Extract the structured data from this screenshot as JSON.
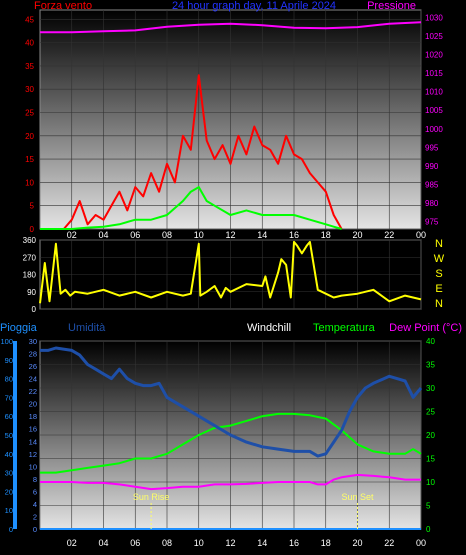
{
  "chart_data": [
    {
      "type": "line",
      "panel": "wind-pressure",
      "title": "24 hour graph day, 11 Aprile 2024",
      "left_axis_label": "Forza vento",
      "right_axis_label": "Pressione",
      "x_ticks": [
        "02",
        "04",
        "06",
        "08",
        "10",
        "12",
        "14",
        "16",
        "18",
        "20",
        "22",
        "00"
      ],
      "left_ticks": [
        "0",
        "5",
        "10",
        "15",
        "20",
        "25",
        "30",
        "35",
        "40",
        "45"
      ],
      "right_ticks": [
        "975",
        "980",
        "985",
        "990",
        "995",
        "1000",
        "1005",
        "1010",
        "1015",
        "1020",
        "1025",
        "1030"
      ],
      "ylim_left": [
        0,
        47
      ],
      "ylim_right": [
        973,
        1032
      ],
      "series": [
        {
          "color": "#ff00ff",
          "hours": [
            0,
            2,
            4,
            6,
            8,
            10,
            12,
            14,
            16,
            18,
            20,
            22,
            24
          ],
          "values": [
            1026,
            1026,
            1026.3,
            1026.5,
            1027.5,
            1028,
            1028.3,
            1027.9,
            1027.2,
            1027.1,
            1027.4,
            1028.3,
            1028.7
          ]
        },
        {
          "color": "#ff0000",
          "hours": [
            0,
            0.5,
            1,
            1.5,
            2,
            2.5,
            3,
            3.5,
            4,
            4.5,
            5,
            5.5,
            6,
            6.5,
            7,
            7.5,
            8,
            8.5,
            9,
            9.5,
            10,
            10.5,
            11,
            11.5,
            12,
            12.5,
            13,
            13.5,
            14,
            14.5,
            15,
            15.5,
            16,
            16.5,
            17,
            17.5,
            18,
            18.5,
            19
          ],
          "values": [
            0,
            0,
            0,
            0,
            2,
            6,
            1,
            3,
            2,
            5,
            8,
            4,
            9,
            7,
            12,
            8,
            14,
            10,
            20,
            17,
            33,
            19,
            15,
            18,
            14,
            20,
            16,
            22,
            18,
            17,
            14,
            20,
            16,
            15,
            12,
            10,
            8,
            3,
            0
          ]
        },
        {
          "color": "#00ff00",
          "hours": [
            0,
            2,
            3,
            4,
            5,
            6,
            7,
            8,
            9,
            9.5,
            10,
            10.5,
            11,
            12,
            13,
            14,
            15,
            16,
            17,
            18,
            18.5,
            19
          ],
          "values": [
            0,
            0,
            0.3,
            0.5,
            1,
            2,
            2,
            3,
            6,
            8,
            9,
            6,
            5,
            3,
            4,
            3,
            3,
            3,
            2,
            1,
            0.5,
            0
          ]
        }
      ]
    },
    {
      "type": "line",
      "panel": "wind-direction",
      "left_ticks": [
        "0",
        "90",
        "180",
        "270",
        "360"
      ],
      "right_labels": [
        "N",
        "W",
        "S",
        "E",
        "N"
      ],
      "ylim": [
        0,
        360
      ],
      "series": [
        {
          "color": "#ffff00",
          "hours": [
            0,
            0.3,
            0.6,
            1,
            1.3,
            1.6,
            1.9,
            2.2,
            3,
            4,
            5,
            6,
            7,
            8,
            9,
            9.5,
            10,
            10.1,
            10.5,
            11,
            11.4,
            11.7,
            12,
            13,
            14,
            14.2,
            14.5,
            15,
            15.2,
            15.5,
            15.8,
            16,
            16.2,
            16.5,
            16.8,
            17,
            17.5,
            18,
            18.5,
            19,
            20,
            21,
            22,
            23,
            24
          ],
          "values": [
            30,
            240,
            40,
            340,
            80,
            100,
            70,
            90,
            80,
            100,
            70,
            90,
            60,
            90,
            70,
            80,
            340,
            70,
            90,
            120,
            60,
            110,
            90,
            130,
            120,
            170,
            60,
            190,
            260,
            230,
            60,
            350,
            330,
            290,
            330,
            350,
            100,
            80,
            60,
            70,
            80,
            100,
            40,
            70,
            50
          ]
        }
      ]
    },
    {
      "type": "line",
      "panel": "temperature-humidity",
      "header_labels": [
        "Pioggia",
        "Umidità",
        "Windchill",
        "Temperatura",
        "Dew Point (°C)"
      ],
      "left_ticks_rain": [
        "0",
        "10",
        "20",
        "30",
        "40",
        "50",
        "60",
        "70",
        "80",
        "90",
        "100"
      ],
      "left_ticks_hum": [
        "0",
        "2",
        "4",
        "6",
        "8",
        "10",
        "12",
        "14",
        "16",
        "18",
        "20",
        "22",
        "24",
        "26",
        "28",
        "30"
      ],
      "right_ticks": [
        "0",
        "5",
        "10",
        "15",
        "20",
        "25",
        "30",
        "35",
        "40"
      ],
      "ylim": [
        0,
        40
      ],
      "annotations": [
        {
          "text": "Sun Rise",
          "hour": 7
        },
        {
          "text": "Sun Set",
          "hour": 20
        }
      ],
      "series": [
        {
          "color": "#1e4fa8",
          "hours": [
            0,
            0.5,
            1,
            2,
            2.5,
            3,
            3.5,
            4,
            4.5,
            5,
            5.5,
            6,
            6.5,
            7,
            7.5,
            8,
            9,
            10,
            11,
            12,
            13,
            14,
            15,
            16,
            17,
            17.5,
            18,
            18.5,
            19,
            19.5,
            20,
            20.5,
            21,
            22,
            23,
            23.5,
            24
          ],
          "values": [
            38,
            38,
            38.5,
            38,
            37,
            35,
            34,
            33,
            32,
            34,
            32,
            31,
            30.5,
            30.5,
            31,
            28,
            26,
            24,
            22,
            20,
            18.5,
            17.5,
            17,
            16.5,
            16.5,
            15.5,
            16,
            18.5,
            21,
            25,
            28,
            30,
            31,
            32.5,
            31.5,
            28,
            30
          ]
        },
        {
          "color": "#00ff00",
          "hours": [
            0,
            1,
            2,
            3,
            4,
            5,
            6,
            7,
            7.5,
            8,
            9,
            10,
            11,
            12,
            13,
            14,
            15,
            16,
            17,
            18,
            19,
            20,
            21,
            22,
            23,
            23.5,
            24
          ],
          "values": [
            12,
            12,
            12.5,
            13,
            13.5,
            14,
            15,
            15,
            15.5,
            16,
            18,
            20,
            21.5,
            22,
            23,
            24,
            24.5,
            24.5,
            24.2,
            23.5,
            21,
            18,
            16.5,
            16,
            16,
            17,
            16
          ]
        },
        {
          "color": "#ff00ff",
          "hours": [
            0,
            1,
            2,
            3,
            4,
            5,
            6,
            7,
            8,
            9,
            10,
            11,
            12,
            13,
            14,
            15,
            16,
            17,
            17.5,
            18,
            18.5,
            19,
            20,
            21,
            22,
            23,
            24
          ],
          "values": [
            10,
            10,
            10,
            9.8,
            9.8,
            9.5,
            9,
            8.5,
            8.7,
            9,
            9,
            9.5,
            9.5,
            9.6,
            9.8,
            10,
            10,
            10,
            9.5,
            9.5,
            10.5,
            11,
            11.5,
            11.3,
            11,
            10.5,
            10.5
          ]
        },
        {
          "color": "#1e90ff",
          "hours": [
            0,
            24
          ],
          "values": [
            0,
            0
          ]
        }
      ]
    }
  ]
}
